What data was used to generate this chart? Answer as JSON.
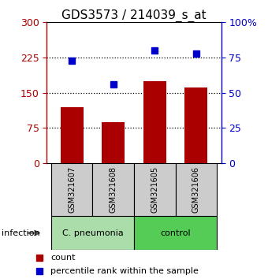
{
  "title": "GDS3573 / 214039_s_at",
  "samples": [
    "GSM321607",
    "GSM321608",
    "GSM321605",
    "GSM321606"
  ],
  "counts": [
    120,
    88,
    175,
    162
  ],
  "percentiles": [
    73,
    56,
    80,
    78
  ],
  "left_yticks": [
    0,
    75,
    150,
    225,
    300
  ],
  "right_yticks": [
    0,
    25,
    50,
    75,
    100
  ],
  "ylim_left": [
    0,
    300
  ],
  "ylim_right": [
    0,
    100
  ],
  "bar_color": "#aa0000",
  "dot_color": "#0000cc",
  "groups": [
    {
      "label": "C. pneumonia",
      "indices": [
        0,
        1
      ],
      "color": "#aaddaa"
    },
    {
      "label": "control",
      "indices": [
        2,
        3
      ],
      "color": "#55cc55"
    }
  ],
  "group_label": "infection",
  "sample_box_color": "#cccccc",
  "legend_count_color": "#aa0000",
  "legend_pct_color": "#0000cc",
  "background_color": "#ffffff",
  "dotted_line_color": "#000000",
  "title_fontsize": 11,
  "tick_fontsize": 9
}
